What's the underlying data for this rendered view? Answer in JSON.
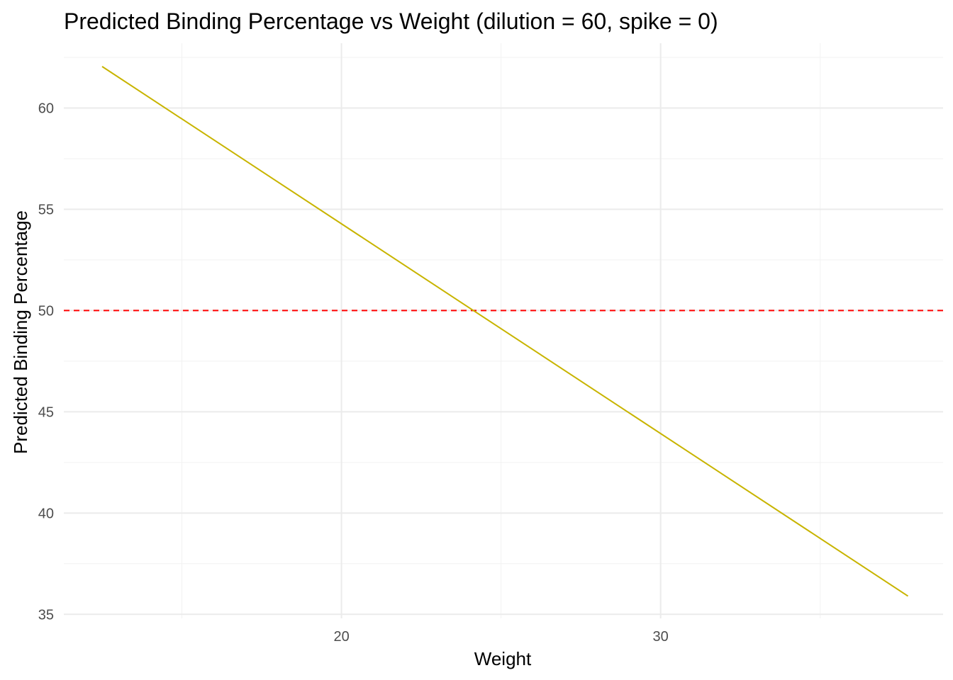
{
  "chart_data": {
    "type": "line",
    "title": "Predicted Binding Percentage vs Weight (dilution = 60, spike = 0)",
    "xlabel": "Weight",
    "ylabel": "Predicted Binding Percentage",
    "xlim": [
      11.3,
      38.85
    ],
    "ylim": [
      34.8,
      63.2
    ],
    "x_major_ticks": [
      20,
      30
    ],
    "x_tick_labels": [
      "20",
      "30"
    ],
    "x_minor_ticks": [
      15,
      25,
      35
    ],
    "y_major_ticks": [
      35,
      40,
      45,
      50,
      55,
      60
    ],
    "y_tick_labels": [
      "35",
      "40",
      "45",
      "50",
      "55",
      "60"
    ],
    "y_minor_ticks": [
      37.5,
      42.5,
      47.5,
      52.5,
      57.5,
      62.5
    ],
    "grid": true,
    "legend": "none",
    "series": [
      {
        "color": "#c8b400",
        "points": [
          [
            12.5,
            62.05
          ],
          [
            37.75,
            35.9
          ]
        ]
      }
    ],
    "reference_lines": [
      {
        "axis": "y",
        "value": 50,
        "style": "dashed",
        "color": "#ff0000"
      }
    ]
  }
}
